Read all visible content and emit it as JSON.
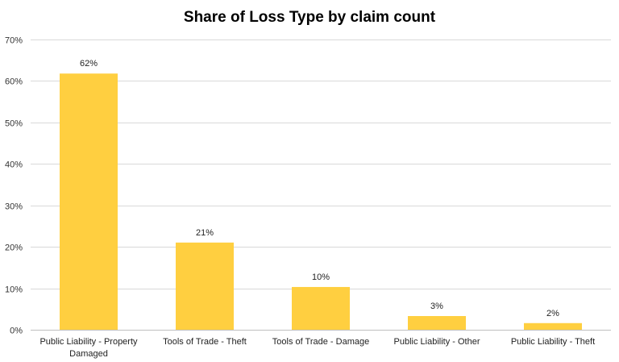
{
  "chart_data": {
    "type": "bar",
    "title": "Share of Loss Type by claim count",
    "xlabel": "",
    "ylabel": "",
    "categories": [
      [
        "Public Liability - Property",
        "Damaged"
      ],
      [
        "Tools of Trade - Theft"
      ],
      [
        "Tools of Trade - Damage"
      ],
      [
        "Public Liability - Other"
      ],
      [
        "Public Liability - Theft"
      ]
    ],
    "values": [
      0.617,
      0.21,
      0.103,
      0.033,
      0.016
    ],
    "data_labels": [
      "62%",
      "21%",
      "10%",
      "3%",
      "2%"
    ],
    "ylim": [
      0,
      0.7
    ],
    "yticks": [
      0,
      0.1,
      0.2,
      0.3,
      0.4,
      0.5,
      0.6,
      0.7
    ],
    "ytick_labels": [
      "0%",
      "10%",
      "20%",
      "30%",
      "40%",
      "50%",
      "60%",
      "70%"
    ],
    "bar_color": "#FFCF40",
    "grid": true,
    "legend": "none"
  }
}
